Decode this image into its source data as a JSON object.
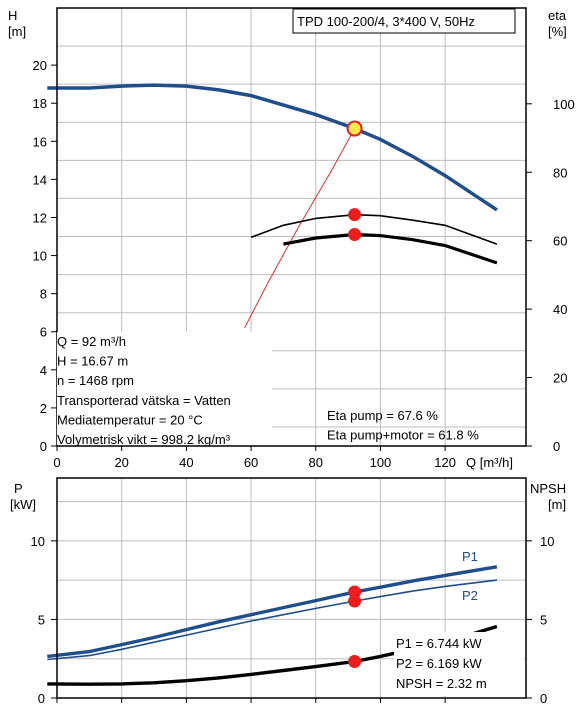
{
  "chart_data": [
    {
      "type": "line",
      "title": "TPD 100-200/4, 3*400 V, 50Hz",
      "xlabel": "Q [m³/h]",
      "ylabel": "H\n[m]",
      "ylabel_right": "eta\n[%]",
      "xlim": [
        0,
        145
      ],
      "ylim": [
        0,
        23
      ],
      "ylim_right": [
        0,
        128
      ],
      "xticks": [
        0,
        20,
        40,
        60,
        80,
        100,
        120
      ],
      "yticks": [
        0,
        2,
        4,
        6,
        8,
        10,
        12,
        14,
        16,
        18,
        20
      ],
      "yticks_right": [
        0,
        20,
        40,
        60,
        80,
        100
      ],
      "grid": true,
      "series": [
        {
          "key": "H",
          "axis": "left",
          "color": "#1f4e8c",
          "x": [
            -3,
            10,
            20,
            30,
            40,
            50,
            60,
            70,
            80,
            92,
            100,
            110,
            120,
            136
          ],
          "y": [
            18.8,
            18.8,
            18.9,
            18.95,
            18.9,
            18.7,
            18.4,
            17.9,
            17.4,
            16.67,
            16.1,
            15.2,
            14.2,
            12.4
          ]
        },
        {
          "key": "system",
          "axis": "left",
          "color": "#e03030",
          "x": [
            58,
            65,
            75,
            85,
            92
          ],
          "y": [
            6.2,
            8.5,
            11.6,
            14.5,
            16.67
          ]
        },
        {
          "key": "eta_pump",
          "axis": "right",
          "color": "#000000",
          "x": [
            60,
            70,
            80,
            92,
            100,
            110,
            120,
            136
          ],
          "y": [
            61,
            64.5,
            66.5,
            67.6,
            67.3,
            66,
            64.5,
            59
          ]
        },
        {
          "key": "eta_pump_motor",
          "axis": "right",
          "color": "#000000",
          "x": [
            70,
            80,
            92,
            100,
            110,
            120,
            136
          ],
          "y": [
            59,
            60.8,
            61.8,
            61.5,
            60.3,
            58.6,
            53.5
          ]
        }
      ],
      "duty_point": {
        "q": 92,
        "h": 16.67,
        "eta_pump": 67.6,
        "eta_pump_motor": 61.8
      },
      "info_left": [
        "Q = 92 m³/h",
        "H = 16.67 m",
        "n = 1468 rpm",
        "Transporterad vätska = Vatten",
        "Mediatemperatur = 20 °C",
        "Volymetrisk vikt = 998.2 kg/m³"
      ],
      "info_right": [
        "Eta pump = 67.6 %",
        "Eta pump+motor = 61.8 %"
      ]
    },
    {
      "type": "line",
      "ylabel": "P\n[kW]",
      "ylabel_right": "NPSH\n[m]",
      "xlim": [
        0,
        145
      ],
      "ylim": [
        0,
        14
      ],
      "ylim_right": [
        0,
        14
      ],
      "yticks": [
        0,
        5,
        10
      ],
      "yticks_right": [
        0,
        5,
        10
      ],
      "grid": true,
      "series": [
        {
          "name": "P1",
          "key": "P1",
          "axis": "left",
          "color": "#1f4e8c",
          "x": [
            -3,
            10,
            20,
            30,
            40,
            50,
            60,
            70,
            80,
            92,
            100,
            110,
            120,
            136
          ],
          "y": [
            2.65,
            2.95,
            3.4,
            3.85,
            4.35,
            4.85,
            5.3,
            5.75,
            6.2,
            6.744,
            7.05,
            7.45,
            7.8,
            8.35
          ]
        },
        {
          "name": "P2",
          "key": "P2",
          "axis": "left",
          "color": "#1f4e8c",
          "x": [
            -3,
            10,
            20,
            30,
            40,
            50,
            60,
            70,
            80,
            92,
            100,
            110,
            120,
            136
          ],
          "y": [
            2.45,
            2.7,
            3.1,
            3.55,
            4.0,
            4.45,
            4.9,
            5.3,
            5.7,
            6.169,
            6.45,
            6.8,
            7.1,
            7.5
          ]
        },
        {
          "name": "",
          "key": "NPSH",
          "axis": "right",
          "color": "#000000",
          "x": [
            -3,
            10,
            20,
            30,
            40,
            50,
            60,
            70,
            80,
            92,
            100,
            110,
            120,
            136
          ],
          "y": [
            0.9,
            0.88,
            0.9,
            0.97,
            1.1,
            1.28,
            1.5,
            1.75,
            2.0,
            2.32,
            2.65,
            3.1,
            3.55,
            4.55
          ]
        }
      ],
      "duty_point": {
        "q": 92,
        "p1": 6.744,
        "p2": 6.169,
        "npsh": 2.32
      },
      "info_right": [
        "P1 = 6.744 kW",
        "P2 = 6.169 kW",
        "NPSH = 2.32 m"
      ]
    }
  ]
}
